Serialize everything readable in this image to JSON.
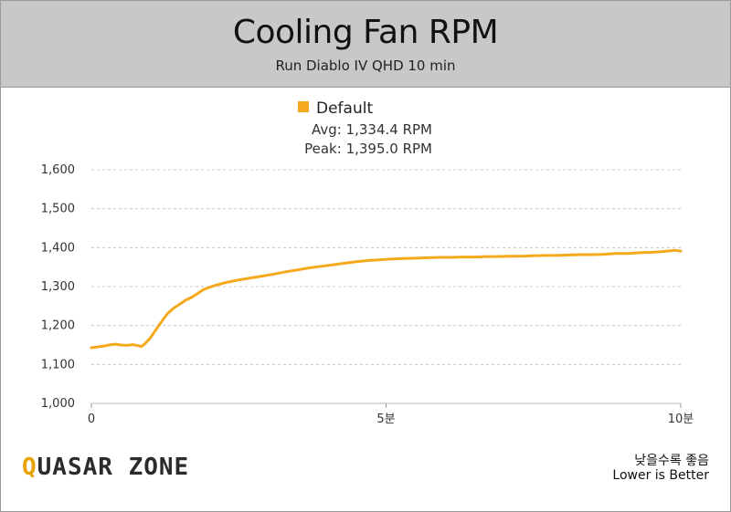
{
  "header": {
    "title": "Cooling Fan RPM",
    "subtitle": "Run Diablo IV QHD 10 min"
  },
  "legend": {
    "label": "Default",
    "avg": "Avg: 1,334.4 RPM",
    "peak": "Peak: 1,395.0 RPM"
  },
  "footer": {
    "note_kr": "낮을수록 좋음",
    "note_en": "Lower is Better",
    "logo": "QUASAR ZONE"
  },
  "colors": {
    "series": "#f5a91c",
    "grid": "#c8c8c8"
  },
  "chart_data": {
    "type": "line",
    "xlabel": "",
    "ylabel": "",
    "xlim": [
      0,
      10
    ],
    "ylim": [
      1000,
      1600
    ],
    "x_ticks": [
      {
        "value": 0,
        "label": "0"
      },
      {
        "value": 5,
        "label": "5분"
      },
      {
        "value": 10,
        "label": "10분"
      }
    ],
    "y_ticks": [
      {
        "value": 1000,
        "label": "1,000"
      },
      {
        "value": 1100,
        "label": "1,100"
      },
      {
        "value": 1200,
        "label": "1,200"
      },
      {
        "value": 1300,
        "label": "1,300"
      },
      {
        "value": 1400,
        "label": "1,400"
      },
      {
        "value": 1500,
        "label": "1,500"
      },
      {
        "value": 1600,
        "label": "1,600"
      }
    ],
    "grid": true,
    "legend_position": "top-center",
    "series": [
      {
        "name": "Default",
        "x": [
          0,
          0.1,
          0.2,
          0.3,
          0.4,
          0.5,
          0.6,
          0.7,
          0.8,
          0.85,
          0.9,
          1.0,
          1.1,
          1.2,
          1.3,
          1.4,
          1.5,
          1.6,
          1.7,
          1.8,
          1.9,
          2.0,
          2.1,
          2.2,
          2.3,
          2.5,
          2.7,
          2.9,
          3.1,
          3.3,
          3.5,
          3.7,
          3.9,
          4.1,
          4.3,
          4.5,
          4.7,
          4.9,
          5.1,
          5.3,
          5.5,
          5.7,
          5.9,
          6.1,
          6.3,
          6.5,
          6.7,
          6.9,
          7.1,
          7.3,
          7.5,
          7.7,
          7.9,
          8.1,
          8.3,
          8.5,
          8.7,
          8.9,
          9.1,
          9.3,
          9.5,
          9.7,
          9.9,
          10.0
        ],
        "values": [
          1143,
          1145,
          1147,
          1150,
          1152,
          1150,
          1149,
          1151,
          1148,
          1146,
          1152,
          1168,
          1190,
          1212,
          1232,
          1245,
          1255,
          1265,
          1272,
          1282,
          1292,
          1298,
          1303,
          1307,
          1311,
          1317,
          1322,
          1327,
          1332,
          1338,
          1343,
          1348,
          1352,
          1356,
          1360,
          1364,
          1367,
          1369,
          1371,
          1372,
          1373,
          1374,
          1375,
          1375,
          1376,
          1376,
          1377,
          1377,
          1378,
          1378,
          1379,
          1380,
          1380,
          1381,
          1382,
          1382,
          1383,
          1385,
          1385,
          1387,
          1388,
          1390,
          1393,
          1391
        ]
      }
    ]
  }
}
